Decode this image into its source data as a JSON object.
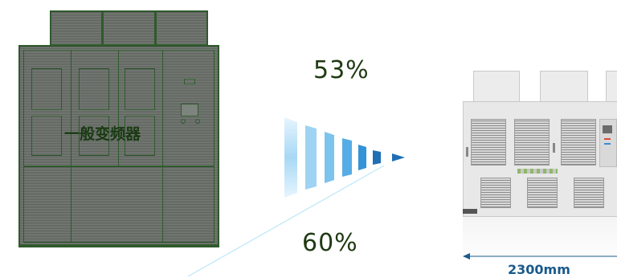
{
  "old_inverter": {
    "label": "一般变频器"
  },
  "comparison": {
    "top_percent": "53%",
    "bottom_percent": "60%"
  },
  "new_inverter": {
    "width_label": "2300mm"
  },
  "colors": {
    "old_cabinet": "#6e726d",
    "old_outline": "#2f5a2c",
    "arrow_blue": "#1e6fb5",
    "arrow_light": "#a8d8f5",
    "text_dark_green": "#1f3a12",
    "dimension_blue": "#1a5a8c"
  }
}
